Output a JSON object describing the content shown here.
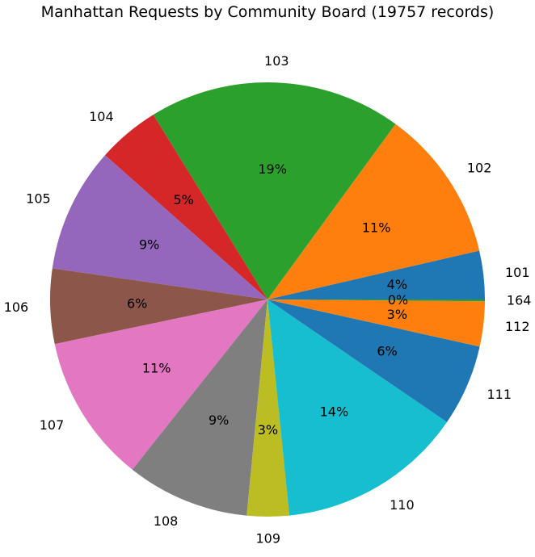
{
  "chart_data": {
    "type": "pie",
    "title": "Manhattan Requests by Community Board (19757 records)",
    "counterclock": true,
    "start_angle_deg": 0,
    "slices": [
      {
        "label": "101",
        "pct_label": "4%",
        "fraction": 0.0359,
        "color": "#1f77b4"
      },
      {
        "label": "102",
        "pct_label": "11%",
        "fraction": 0.113,
        "color": "#ff7f0e"
      },
      {
        "label": "103",
        "pct_label": "19%",
        "fraction": 0.1872,
        "color": "#2ca02c"
      },
      {
        "label": "104",
        "pct_label": "5%",
        "fraction": 0.046,
        "color": "#d62728"
      },
      {
        "label": "105",
        "pct_label": "9%",
        "fraction": 0.0922,
        "color": "#9467bd"
      },
      {
        "label": "106",
        "pct_label": "6%",
        "fraction": 0.0555,
        "color": "#8c564b"
      },
      {
        "label": "107",
        "pct_label": "11%",
        "fraction": 0.1097,
        "color": "#e377c2"
      },
      {
        "label": "108",
        "pct_label": "9%",
        "fraction": 0.091,
        "color": "#7f7f7f"
      },
      {
        "label": "109",
        "pct_label": "3%",
        "fraction": 0.0311,
        "color": "#bcbd22"
      },
      {
        "label": "110",
        "pct_label": "14%",
        "fraction": 0.1377,
        "color": "#17becf"
      },
      {
        "label": "111",
        "pct_label": "6%",
        "fraction": 0.0603,
        "color": "#1f77b4"
      },
      {
        "label": "112",
        "pct_label": "3%",
        "fraction": 0.0333,
        "color": "#ff7f0e"
      },
      {
        "label": "164",
        "pct_label": "0%",
        "fraction": 0.0013,
        "color": "#2ca02c"
      }
    ]
  }
}
